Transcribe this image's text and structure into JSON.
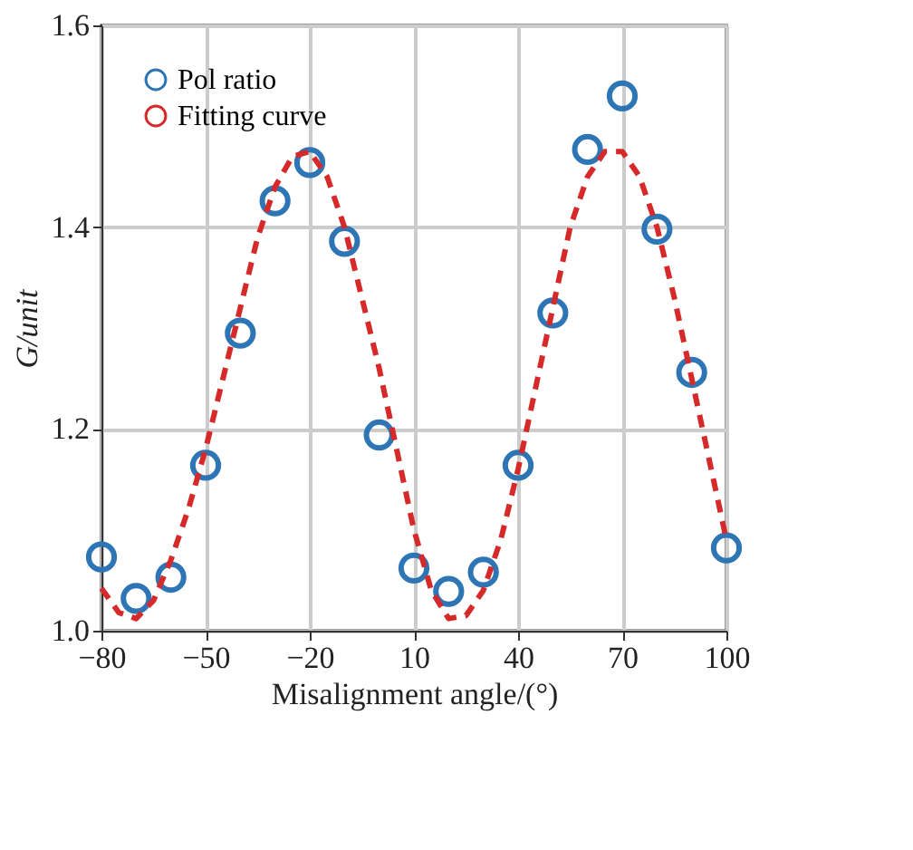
{
  "chart_data": {
    "type": "scatter",
    "xlabel": "Misalignment angle/(°)",
    "ylabel": "G/unit",
    "xlim": [
      -80,
      100
    ],
    "xticks": [
      -80,
      -50,
      -20,
      10,
      40,
      70,
      100
    ],
    "ylim": [
      1.0,
      1.6
    ],
    "yticks": [
      {
        "value": 1.0,
        "label": "1.0"
      },
      1.2,
      1.4,
      1.6
    ],
    "grid": true,
    "legend": "top left",
    "series": [
      {
        "name": "Pol ratio",
        "marker": "circle",
        "color": "#2e75b6",
        "x": [
          -80,
          -70,
          -60,
          -50,
          -40,
          -30,
          -20,
          -10,
          0,
          10,
          20,
          30,
          40,
          50,
          60,
          70,
          80,
          90,
          100
        ],
        "values": [
          1.073,
          1.032,
          1.053,
          1.164,
          1.295,
          1.426,
          1.464,
          1.386,
          1.194,
          1.062,
          1.039,
          1.058,
          1.164,
          1.315,
          1.477,
          1.53,
          1.398,
          1.256,
          1.082
        ]
      },
      {
        "name": "Fitting curve",
        "type": "line",
        "line_style": "dashed",
        "color": "#d62a2a",
        "x": [
          -80,
          -75,
          -70,
          -65,
          -60,
          -55,
          -50,
          -45,
          -40,
          -35,
          -30,
          -25,
          -20,
          -15,
          -10,
          -5,
          0,
          5,
          10,
          15,
          20,
          25,
          30,
          35,
          40,
          45,
          50,
          55,
          60,
          65,
          70,
          75,
          80,
          85,
          90,
          95,
          100
        ],
        "values": [
          1.042,
          1.018,
          1.012,
          1.03,
          1.07,
          1.12,
          1.18,
          1.25,
          1.32,
          1.39,
          1.44,
          1.47,
          1.475,
          1.45,
          1.4,
          1.33,
          1.26,
          1.18,
          1.1,
          1.04,
          1.012,
          1.015,
          1.04,
          1.09,
          1.16,
          1.24,
          1.32,
          1.4,
          1.45,
          1.475,
          1.475,
          1.45,
          1.4,
          1.33,
          1.25,
          1.17,
          1.09
        ]
      }
    ]
  }
}
